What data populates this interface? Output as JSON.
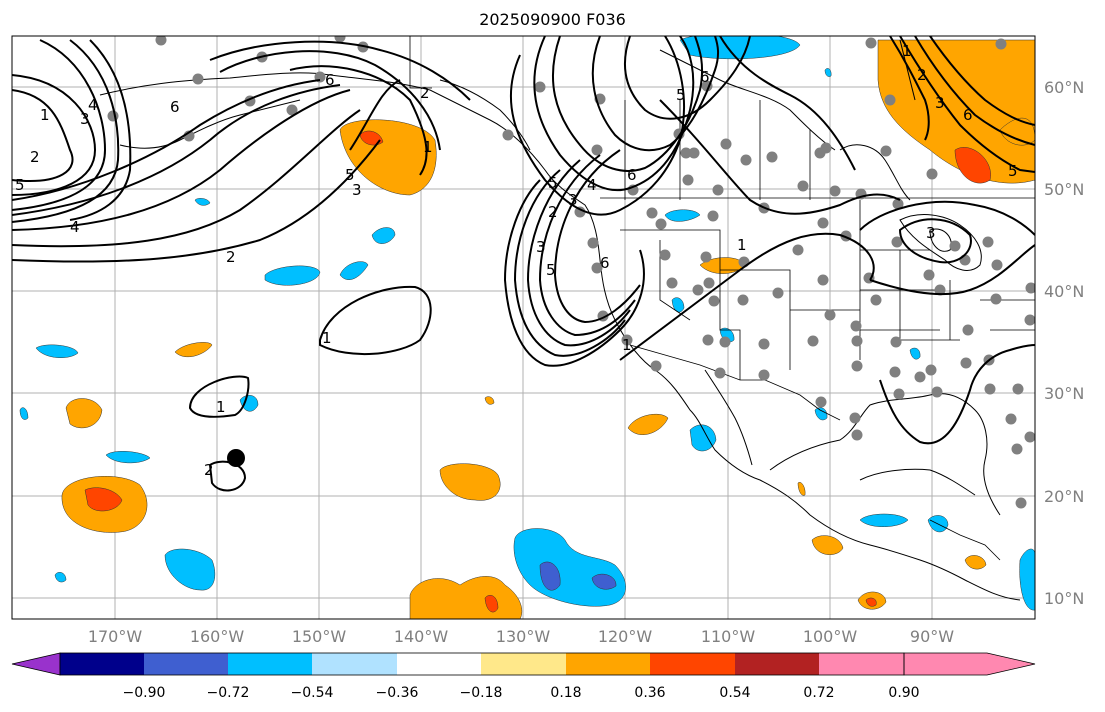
{
  "title": "2025090900 F036",
  "map": {
    "lon_labels": [
      "170°W",
      "160°W",
      "150°W",
      "140°W",
      "130°W",
      "120°W",
      "110°W",
      "100°W",
      "90°W"
    ],
    "lat_labels": [
      "60°N",
      "50°N",
      "40°N",
      "30°N",
      "20°N",
      "10°N"
    ],
    "contour_labels": [
      "1",
      "2",
      "3",
      "4",
      "5",
      "6",
      "6",
      "5",
      "3",
      "2",
      "1",
      "4",
      "2",
      "1",
      "1",
      "2",
      "3",
      "4",
      "5",
      "6",
      "5",
      "6",
      "6",
      "5",
      "3",
      "2",
      "1",
      "1",
      "3",
      "5",
      "6",
      "3",
      "2",
      "1"
    ]
  },
  "colorbar": {
    "ticks": [
      "−0.90",
      "−0.72",
      "−0.54",
      "−0.36",
      "−0.18",
      "0.18",
      "0.36",
      "0.54",
      "0.72",
      "0.90"
    ],
    "colors": [
      "#9932cc",
      "#00008b",
      "#3f5fd0",
      "#00bfff",
      "#b0e2ff",
      "#ffffff",
      "#ffe88a",
      "#ffa500",
      "#ff4500",
      "#b22222",
      "#ff88b0"
    ]
  }
}
